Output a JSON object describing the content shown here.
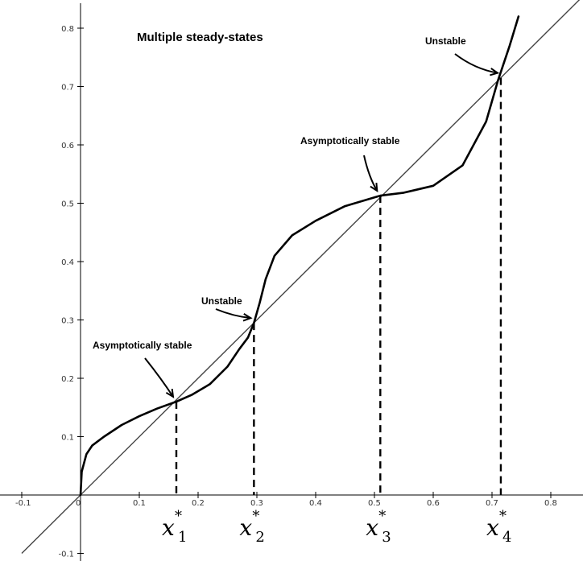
{
  "chart_data": {
    "type": "line",
    "title": "Multiple steady-states",
    "xlabel": "",
    "ylabel": "",
    "xlim": [
      -0.1,
      0.85
    ],
    "ylim": [
      -0.1,
      0.82
    ],
    "x_ticks": [
      {
        "value": -0.1,
        "label": "-0.1"
      },
      {
        "value": 0,
        "label": "0"
      },
      {
        "value": 0.1,
        "label": "0.1"
      },
      {
        "value": 0.2,
        "label": "0.2"
      },
      {
        "value": 0.3,
        "label": "0.3"
      },
      {
        "value": 0.4,
        "label": "0.4"
      },
      {
        "value": 0.5,
        "label": "0.5"
      },
      {
        "value": 0.6,
        "label": "0.6"
      },
      {
        "value": 0.7,
        "label": "0.7"
      },
      {
        "value": 0.8,
        "label": "0.8"
      }
    ],
    "y_ticks": [
      {
        "value": -0.1,
        "label": "-0.1"
      },
      {
        "value": 0.1,
        "label": "0.1"
      },
      {
        "value": 0.2,
        "label": "0.2"
      },
      {
        "value": 0.3,
        "label": "0.3"
      },
      {
        "value": 0.4,
        "label": "0.4"
      },
      {
        "value": 0.5,
        "label": "0.5"
      },
      {
        "value": 0.6,
        "label": "0.6"
      },
      {
        "value": 0.7,
        "label": "0.7"
      },
      {
        "value": 0.8,
        "label": "0.8"
      }
    ],
    "grid": false,
    "series": [
      {
        "style": "thin",
        "x": [
          -0.1,
          0.85
        ],
        "y": [
          -0.1,
          0.85
        ]
      },
      {
        "style": "thick",
        "x": [
          0.0,
          0.002,
          0.01,
          0.02,
          0.04,
          0.07,
          0.1,
          0.13,
          0.163,
          0.19,
          0.22,
          0.25,
          0.27,
          0.285,
          0.295,
          0.305,
          0.315,
          0.33,
          0.36,
          0.4,
          0.45,
          0.5,
          0.51,
          0.55,
          0.6,
          0.65,
          0.69,
          0.71,
          0.73,
          0.745
        ],
        "y": [
          0.0,
          0.04,
          0.07,
          0.085,
          0.1,
          0.12,
          0.135,
          0.148,
          0.16,
          0.172,
          0.19,
          0.22,
          0.25,
          0.27,
          0.295,
          0.33,
          0.37,
          0.41,
          0.445,
          0.47,
          0.495,
          0.51,
          0.513,
          0.518,
          0.53,
          0.565,
          0.64,
          0.71,
          0.77,
          0.82
        ]
      }
    ],
    "steady_states": [
      {
        "x": 0.163,
        "y": 0.16,
        "label_main": "x",
        "label_star": "*",
        "label_sub": "1"
      },
      {
        "x": 0.295,
        "y": 0.295,
        "label_main": "x",
        "label_star": "*",
        "label_sub": "2"
      },
      {
        "x": 0.51,
        "y": 0.513,
        "label_main": "x",
        "label_star": "*",
        "label_sub": "3"
      },
      {
        "x": 0.715,
        "y": 0.715,
        "label_main": "x",
        "label_star": "*",
        "label_sub": "4"
      }
    ],
    "annotations": [
      {
        "text": "Asymptotically stable",
        "target": [
          0.163,
          0.16
        ]
      },
      {
        "text": "Unstable",
        "target": [
          0.295,
          0.295
        ]
      },
      {
        "text": "Asymptotically stable",
        "target": [
          0.51,
          0.513
        ]
      },
      {
        "text": "Unstable",
        "target": [
          0.715,
          0.715
        ]
      }
    ]
  }
}
